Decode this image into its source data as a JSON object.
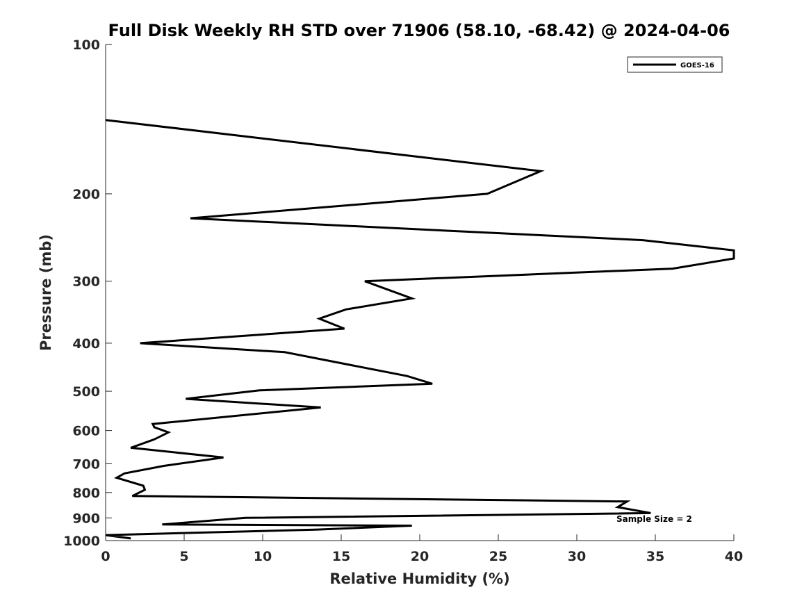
{
  "chart_data": {
    "type": "line",
    "title": "Full Disk Weekly RH STD over 71906 (58.10, -68.42) @ 2024-04-06",
    "xlabel": "Relative Humidity (%)",
    "ylabel": "Pressure (mb)",
    "xlim": [
      0,
      40
    ],
    "ylim": [
      100,
      1000
    ],
    "y_scale": "log",
    "y_reversed": true,
    "x_ticks": [
      0,
      5,
      10,
      15,
      20,
      25,
      30,
      35,
      40
    ],
    "y_ticks": [
      100,
      200,
      300,
      400,
      500,
      600,
      700,
      800,
      900,
      1000
    ],
    "grid": false,
    "legend_position": "top-right",
    "annotation": "Sample Size = 2",
    "series": [
      {
        "name": "GOES-16",
        "color": "#000000",
        "x": [
          0.0,
          27.7,
          24.3,
          5.4,
          34.2,
          40.0,
          40.0,
          36.1,
          16.5,
          19.5,
          15.3,
          13.6,
          15.2,
          2.2,
          11.4,
          19.2,
          20.8,
          9.8,
          5.1,
          13.7,
          3.0,
          3.1,
          4.0,
          3.1,
          1.6,
          7.5,
          3.7,
          1.2,
          0.7,
          2.4,
          2.5,
          1.7,
          33.2,
          32.6,
          34.7,
          8.9,
          3.6,
          19.5,
          13.5,
          0.0,
          1.6
        ],
        "y": [
          142,
          180,
          200,
          224,
          248,
          260,
          270,
          283,
          300,
          325,
          342,
          357,
          374,
          400,
          417,
          466,
          483,
          498,
          518,
          539,
          582,
          591,
          605,
          625,
          650,
          680,
          707,
          732,
          747,
          775,
          790,
          813,
          834,
          856,
          880,
          900,
          928,
          933,
          950,
          975,
          990
        ]
      }
    ]
  }
}
